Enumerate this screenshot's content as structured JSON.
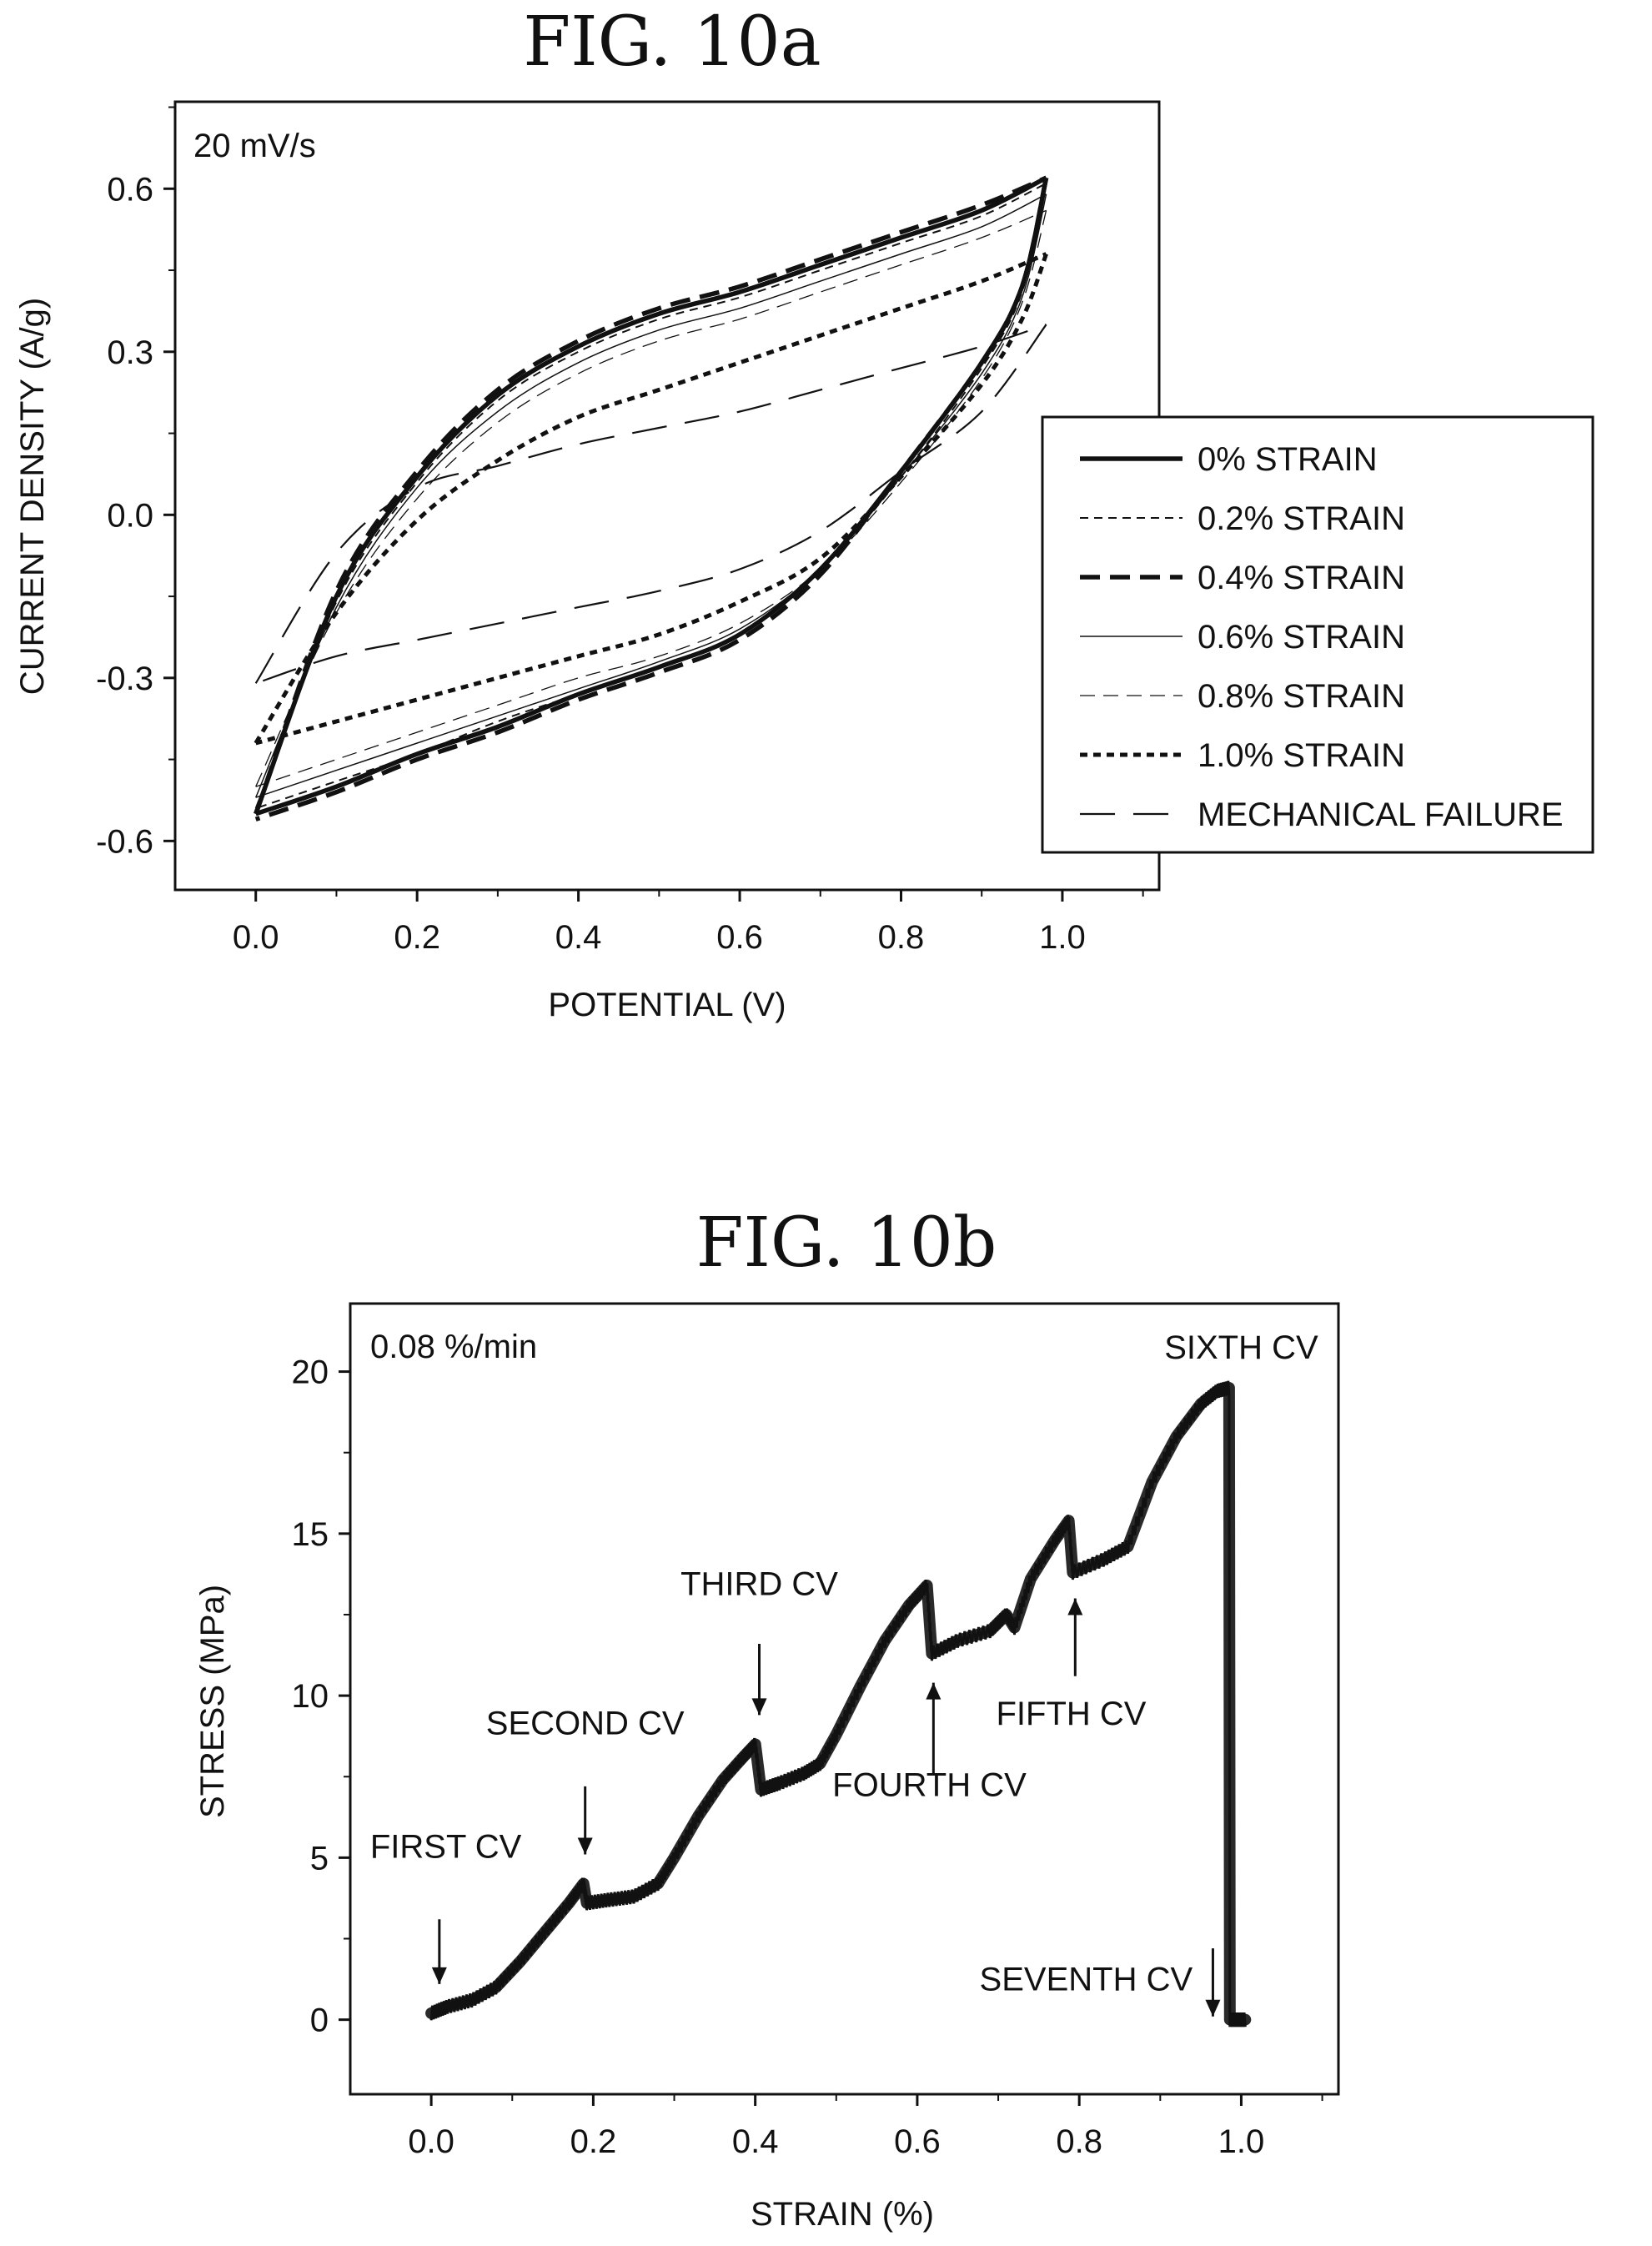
{
  "figures": [
    {
      "title": "FIG. 10a"
    },
    {
      "title": "FIG. 10b"
    }
  ],
  "chart_data": [
    {
      "type": "line",
      "title": "FIG. 10a",
      "annotation": "20 mV/s",
      "xlabel": "POTENTIAL (V)",
      "ylabel": "CURRENT DENSITY (A/g)",
      "xlim": [
        -0.1,
        1.12
      ],
      "ylim": [
        -0.69,
        0.76
      ],
      "xticks": [
        "0.0",
        "0.2",
        "0.4",
        "0.6",
        "0.8",
        "1.0"
      ],
      "yticks": [
        "-0.6",
        "-0.3",
        "0.0",
        "0.3",
        "0.6"
      ],
      "legend_position": "right",
      "series": [
        {
          "name": "0% STRAIN",
          "style": "solid-thick",
          "anodic": [
            [
              0.0,
              -0.55
            ],
            [
              0.1,
              -0.15
            ],
            [
              0.2,
              0.07
            ],
            [
              0.3,
              0.22
            ],
            [
              0.4,
              0.31
            ],
            [
              0.5,
              0.37
            ],
            [
              0.6,
              0.41
            ],
            [
              0.7,
              0.46
            ],
            [
              0.8,
              0.51
            ],
            [
              0.9,
              0.56
            ],
            [
              0.98,
              0.62
            ]
          ],
          "cathodic": [
            [
              0.98,
              0.62
            ],
            [
              0.95,
              0.42
            ],
            [
              0.9,
              0.28
            ],
            [
              0.8,
              0.08
            ],
            [
              0.7,
              -0.1
            ],
            [
              0.6,
              -0.22
            ],
            [
              0.5,
              -0.28
            ],
            [
              0.4,
              -0.33
            ],
            [
              0.3,
              -0.39
            ],
            [
              0.2,
              -0.44
            ],
            [
              0.1,
              -0.5
            ],
            [
              0.0,
              -0.55
            ]
          ]
        },
        {
          "name": "0.2% STRAIN",
          "style": "dashed-thin",
          "anodic": [
            [
              0.0,
              -0.54
            ],
            [
              0.1,
              -0.16
            ],
            [
              0.2,
              0.06
            ],
            [
              0.3,
              0.21
            ],
            [
              0.4,
              0.3
            ],
            [
              0.5,
              0.36
            ],
            [
              0.6,
              0.4
            ],
            [
              0.7,
              0.45
            ],
            [
              0.8,
              0.5
            ],
            [
              0.9,
              0.55
            ],
            [
              0.98,
              0.61
            ]
          ],
          "cathodic": [
            [
              0.98,
              0.61
            ],
            [
              0.95,
              0.41
            ],
            [
              0.9,
              0.27
            ],
            [
              0.8,
              0.07
            ],
            [
              0.7,
              -0.1
            ],
            [
              0.6,
              -0.22
            ],
            [
              0.5,
              -0.28
            ],
            [
              0.4,
              -0.33
            ],
            [
              0.3,
              -0.38
            ],
            [
              0.2,
              -0.44
            ],
            [
              0.1,
              -0.49
            ],
            [
              0.0,
              -0.54
            ]
          ]
        },
        {
          "name": "0.4% STRAIN",
          "style": "dashed-thick",
          "anodic": [
            [
              0.0,
              -0.55
            ],
            [
              0.1,
              -0.14
            ],
            [
              0.2,
              0.08
            ],
            [
              0.3,
              0.23
            ],
            [
              0.4,
              0.32
            ],
            [
              0.5,
              0.38
            ],
            [
              0.6,
              0.42
            ],
            [
              0.7,
              0.47
            ],
            [
              0.8,
              0.52
            ],
            [
              0.9,
              0.57
            ],
            [
              0.98,
              0.62
            ]
          ],
          "cathodic": [
            [
              0.98,
              0.62
            ],
            [
              0.95,
              0.42
            ],
            [
              0.9,
              0.28
            ],
            [
              0.8,
              0.08
            ],
            [
              0.7,
              -0.11
            ],
            [
              0.6,
              -0.23
            ],
            [
              0.5,
              -0.29
            ],
            [
              0.4,
              -0.34
            ],
            [
              0.3,
              -0.4
            ],
            [
              0.2,
              -0.45
            ],
            [
              0.1,
              -0.51
            ],
            [
              0.0,
              -0.56
            ]
          ]
        },
        {
          "name": "0.6% STRAIN",
          "style": "solid-thin",
          "anodic": [
            [
              0.0,
              -0.52
            ],
            [
              0.1,
              -0.17
            ],
            [
              0.2,
              0.05
            ],
            [
              0.3,
              0.19
            ],
            [
              0.4,
              0.28
            ],
            [
              0.5,
              0.34
            ],
            [
              0.6,
              0.38
            ],
            [
              0.7,
              0.43
            ],
            [
              0.8,
              0.48
            ],
            [
              0.9,
              0.53
            ],
            [
              0.98,
              0.59
            ]
          ],
          "cathodic": [
            [
              0.98,
              0.59
            ],
            [
              0.95,
              0.4
            ],
            [
              0.9,
              0.26
            ],
            [
              0.8,
              0.07
            ],
            [
              0.7,
              -0.1
            ],
            [
              0.6,
              -0.21
            ],
            [
              0.5,
              -0.27
            ],
            [
              0.4,
              -0.32
            ],
            [
              0.3,
              -0.37
            ],
            [
              0.2,
              -0.42
            ],
            [
              0.1,
              -0.47
            ],
            [
              0.0,
              -0.52
            ]
          ]
        },
        {
          "name": "0.8% STRAIN",
          "style": "dashed-light",
          "anodic": [
            [
              0.0,
              -0.5
            ],
            [
              0.1,
              -0.18
            ],
            [
              0.2,
              0.03
            ],
            [
              0.3,
              0.17
            ],
            [
              0.4,
              0.26
            ],
            [
              0.5,
              0.32
            ],
            [
              0.6,
              0.36
            ],
            [
              0.7,
              0.41
            ],
            [
              0.8,
              0.46
            ],
            [
              0.9,
              0.51
            ],
            [
              0.98,
              0.56
            ]
          ],
          "cathodic": [
            [
              0.98,
              0.56
            ],
            [
              0.95,
              0.39
            ],
            [
              0.9,
              0.25
            ],
            [
              0.8,
              0.06
            ],
            [
              0.7,
              -0.1
            ],
            [
              0.6,
              -0.2
            ],
            [
              0.5,
              -0.26
            ],
            [
              0.4,
              -0.3
            ],
            [
              0.3,
              -0.35
            ],
            [
              0.2,
              -0.4
            ],
            [
              0.1,
              -0.45
            ],
            [
              0.0,
              -0.5
            ]
          ]
        },
        {
          "name": "1.0% STRAIN",
          "style": "dotted-thick",
          "anodic": [
            [
              0.0,
              -0.42
            ],
            [
              0.1,
              -0.18
            ],
            [
              0.2,
              -0.01
            ],
            [
              0.3,
              0.1
            ],
            [
              0.4,
              0.18
            ],
            [
              0.5,
              0.23
            ],
            [
              0.6,
              0.28
            ],
            [
              0.7,
              0.33
            ],
            [
              0.8,
              0.38
            ],
            [
              0.9,
              0.43
            ],
            [
              0.98,
              0.48
            ]
          ],
          "cathodic": [
            [
              0.98,
              0.48
            ],
            [
              0.95,
              0.36
            ],
            [
              0.9,
              0.24
            ],
            [
              0.8,
              0.07
            ],
            [
              0.7,
              -0.08
            ],
            [
              0.6,
              -0.16
            ],
            [
              0.5,
              -0.22
            ],
            [
              0.4,
              -0.26
            ],
            [
              0.3,
              -0.3
            ],
            [
              0.2,
              -0.34
            ],
            [
              0.1,
              -0.38
            ],
            [
              0.0,
              -0.42
            ]
          ]
        },
        {
          "name": "MECHANICAL FAILURE",
          "style": "long-dash",
          "anodic": [
            [
              0.0,
              -0.31
            ],
            [
              0.1,
              -0.07
            ],
            [
              0.2,
              0.05
            ],
            [
              0.3,
              0.09
            ],
            [
              0.4,
              0.13
            ],
            [
              0.5,
              0.16
            ],
            [
              0.6,
              0.19
            ],
            [
              0.7,
              0.23
            ],
            [
              0.8,
              0.27
            ],
            [
              0.9,
              0.31
            ],
            [
              0.98,
              0.35
            ]
          ],
          "cathodic": [
            [
              0.98,
              0.35
            ],
            [
              0.9,
              0.19
            ],
            [
              0.8,
              0.08
            ],
            [
              0.7,
              -0.03
            ],
            [
              0.6,
              -0.1
            ],
            [
              0.5,
              -0.14
            ],
            [
              0.4,
              -0.17
            ],
            [
              0.3,
              -0.2
            ],
            [
              0.2,
              -0.23
            ],
            [
              0.1,
              -0.26
            ],
            [
              0.0,
              -0.31
            ]
          ]
        }
      ]
    },
    {
      "type": "line",
      "title": "FIG. 10b",
      "annotation": "0.08 %/min",
      "xlabel": "STRAIN (%)",
      "ylabel": "STRESS (MPa)",
      "xlim": [
        -0.1,
        1.12
      ],
      "ylim": [
        -2.3,
        22.1
      ],
      "xticks": [
        "0.0",
        "0.2",
        "0.4",
        "0.6",
        "0.8",
        "1.0"
      ],
      "yticks": [
        "0",
        "5",
        "10",
        "15",
        "20"
      ],
      "series": [
        {
          "name": "",
          "points": [
            [
              0.0,
              0.2
            ],
            [
              0.02,
              0.4
            ],
            [
              0.05,
              0.6
            ],
            [
              0.08,
              1.0
            ],
            [
              0.11,
              1.8
            ],
            [
              0.14,
              2.7
            ],
            [
              0.17,
              3.6
            ],
            [
              0.188,
              4.2
            ],
            [
              0.192,
              3.6
            ],
            [
              0.22,
              3.7
            ],
            [
              0.25,
              3.8
            ],
            [
              0.28,
              4.2
            ],
            [
              0.3,
              5.0
            ],
            [
              0.33,
              6.3
            ],
            [
              0.36,
              7.4
            ],
            [
              0.385,
              8.1
            ],
            [
              0.4,
              8.5
            ],
            [
              0.407,
              7.1
            ],
            [
              0.43,
              7.3
            ],
            [
              0.46,
              7.6
            ],
            [
              0.48,
              7.9
            ],
            [
              0.5,
              8.8
            ],
            [
              0.53,
              10.3
            ],
            [
              0.56,
              11.7
            ],
            [
              0.59,
              12.8
            ],
            [
              0.612,
              13.4
            ],
            [
              0.618,
              11.3
            ],
            [
              0.65,
              11.7
            ],
            [
              0.69,
              12.0
            ],
            [
              0.71,
              12.5
            ],
            [
              0.72,
              12.1
            ],
            [
              0.74,
              13.6
            ],
            [
              0.77,
              14.8
            ],
            [
              0.787,
              15.4
            ],
            [
              0.792,
              13.8
            ],
            [
              0.83,
              14.2
            ],
            [
              0.86,
              14.6
            ],
            [
              0.89,
              16.6
            ],
            [
              0.92,
              18.0
            ],
            [
              0.95,
              19.0
            ],
            [
              0.97,
              19.4
            ],
            [
              0.985,
              19.5
            ],
            [
              0.986,
              0.0
            ],
            [
              1.005,
              0.0
            ]
          ]
        }
      ],
      "annotations": [
        {
          "label": "FIRST CV",
          "x": 0.01,
          "y": 0.3,
          "arrow": "down"
        },
        {
          "label": "SECOND CV",
          "x": 0.19,
          "y": 4.2,
          "arrow": "down"
        },
        {
          "label": "THIRD CV",
          "x": 0.405,
          "y": 8.5,
          "arrow": "down"
        },
        {
          "label": "FOURTH CV",
          "x": 0.62,
          "y": 11.2,
          "arrow": "up"
        },
        {
          "label": "FIFTH CV",
          "x": 0.795,
          "y": 13.8,
          "arrow": "up"
        },
        {
          "label": "SIXTH CV",
          "x": 0.985,
          "y": 19.6,
          "arrow": "none"
        },
        {
          "label": "SEVENTH CV",
          "x": 0.965,
          "y": 0.0,
          "arrow": "down"
        }
      ]
    }
  ]
}
